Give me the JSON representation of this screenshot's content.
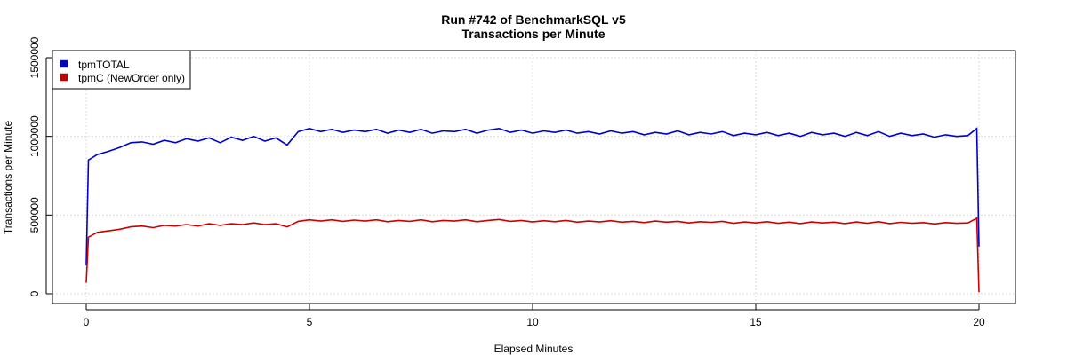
{
  "chart_data": {
    "type": "line",
    "title": "Run #742 of BenchmarkSQL v5",
    "subtitle": "Transactions per Minute",
    "xlabel": "Elapsed Minutes",
    "ylabel": "Transactions per Minute",
    "xlim": [
      -0.75,
      20.8
    ],
    "ylim": [
      -50000,
      1550000
    ],
    "xticks": [
      0,
      5,
      10,
      15,
      20
    ],
    "xtick_labels": [
      "0",
      "5",
      "10",
      "15",
      "20"
    ],
    "yticks": [
      0,
      500000,
      1000000,
      1500000
    ],
    "ytick_labels": [
      "0",
      "500000",
      "1000000",
      "1500000"
    ],
    "grid": true,
    "legend_position": "top-left",
    "series": [
      {
        "name": "tpmTOTAL",
        "color": "#0000cc",
        "x": [
          0,
          0.05,
          0.25,
          0.5,
          0.75,
          1,
          1.25,
          1.5,
          1.75,
          2,
          2.25,
          2.5,
          2.75,
          3,
          3.25,
          3.5,
          3.75,
          4,
          4.25,
          4.5,
          4.75,
          5,
          5.25,
          5.5,
          5.75,
          6,
          6.25,
          6.5,
          6.75,
          7,
          7.25,
          7.5,
          7.75,
          8,
          8.25,
          8.5,
          8.75,
          9,
          9.25,
          9.5,
          9.75,
          10,
          10.25,
          10.5,
          10.75,
          11,
          11.25,
          11.5,
          11.75,
          12,
          12.25,
          12.5,
          12.75,
          13,
          13.25,
          13.5,
          13.75,
          14,
          14.25,
          14.5,
          14.75,
          15,
          15.25,
          15.5,
          15.75,
          16,
          16.25,
          16.5,
          16.75,
          17,
          17.25,
          17.5,
          17.75,
          18,
          18.25,
          18.5,
          18.75,
          19,
          19.25,
          19.5,
          19.75,
          19.95,
          20
        ],
        "values": [
          180000,
          850000,
          885000,
          905000,
          930000,
          960000,
          965000,
          950000,
          975000,
          960000,
          985000,
          970000,
          990000,
          960000,
          995000,
          975000,
          1000000,
          970000,
          990000,
          945000,
          1030000,
          1050000,
          1030000,
          1045000,
          1025000,
          1040000,
          1030000,
          1045000,
          1020000,
          1040000,
          1025000,
          1045000,
          1020000,
          1035000,
          1030000,
          1045000,
          1020000,
          1040000,
          1050000,
          1025000,
          1040000,
          1020000,
          1035000,
          1025000,
          1040000,
          1020000,
          1030000,
          1015000,
          1035000,
          1020000,
          1030000,
          1010000,
          1025000,
          1015000,
          1035000,
          1010000,
          1025000,
          1015000,
          1030000,
          1005000,
          1020000,
          1010000,
          1025000,
          1005000,
          1020000,
          1000000,
          1025000,
          1010000,
          1020000,
          1000000,
          1025000,
          1005000,
          1030000,
          1000000,
          1020000,
          1005000,
          1015000,
          995000,
          1010000,
          1000000,
          1005000,
          1050000,
          300000
        ]
      },
      {
        "name": "tpmC (NewOrder only)",
        "color": "#cc0000",
        "x": [
          0,
          0.05,
          0.25,
          0.5,
          0.75,
          1,
          1.25,
          1.5,
          1.75,
          2,
          2.25,
          2.5,
          2.75,
          3,
          3.25,
          3.5,
          3.75,
          4,
          4.25,
          4.5,
          4.75,
          5,
          5.25,
          5.5,
          5.75,
          6,
          6.25,
          6.5,
          6.75,
          7,
          7.25,
          7.5,
          7.75,
          8,
          8.25,
          8.5,
          8.75,
          9,
          9.25,
          9.5,
          9.75,
          10,
          10.25,
          10.5,
          10.75,
          11,
          11.25,
          11.5,
          11.75,
          12,
          12.25,
          12.5,
          12.75,
          13,
          13.25,
          13.5,
          13.75,
          14,
          14.25,
          14.5,
          14.75,
          15,
          15.25,
          15.5,
          15.75,
          16,
          16.25,
          16.5,
          16.75,
          17,
          17.25,
          17.5,
          17.75,
          18,
          18.25,
          18.5,
          18.75,
          19,
          19.25,
          19.5,
          19.75,
          19.95,
          20
        ],
        "values": [
          70000,
          360000,
          390000,
          400000,
          410000,
          425000,
          430000,
          420000,
          435000,
          430000,
          440000,
          430000,
          445000,
          435000,
          445000,
          440000,
          450000,
          440000,
          445000,
          425000,
          460000,
          470000,
          462000,
          470000,
          460000,
          468000,
          462000,
          470000,
          458000,
          466000,
          460000,
          470000,
          458000,
          466000,
          462000,
          470000,
          458000,
          466000,
          472000,
          460000,
          466000,
          456000,
          464000,
          458000,
          466000,
          455000,
          462000,
          456000,
          464000,
          455000,
          460000,
          452000,
          462000,
          455000,
          460000,
          450000,
          458000,
          454000,
          460000,
          448000,
          456000,
          450000,
          458000,
          448000,
          455000,
          446000,
          456000,
          450000,
          455000,
          446000,
          456000,
          448000,
          458000,
          446000,
          454000,
          448000,
          452000,
          444000,
          452000,
          448000,
          450000,
          480000,
          10000
        ]
      }
    ]
  }
}
